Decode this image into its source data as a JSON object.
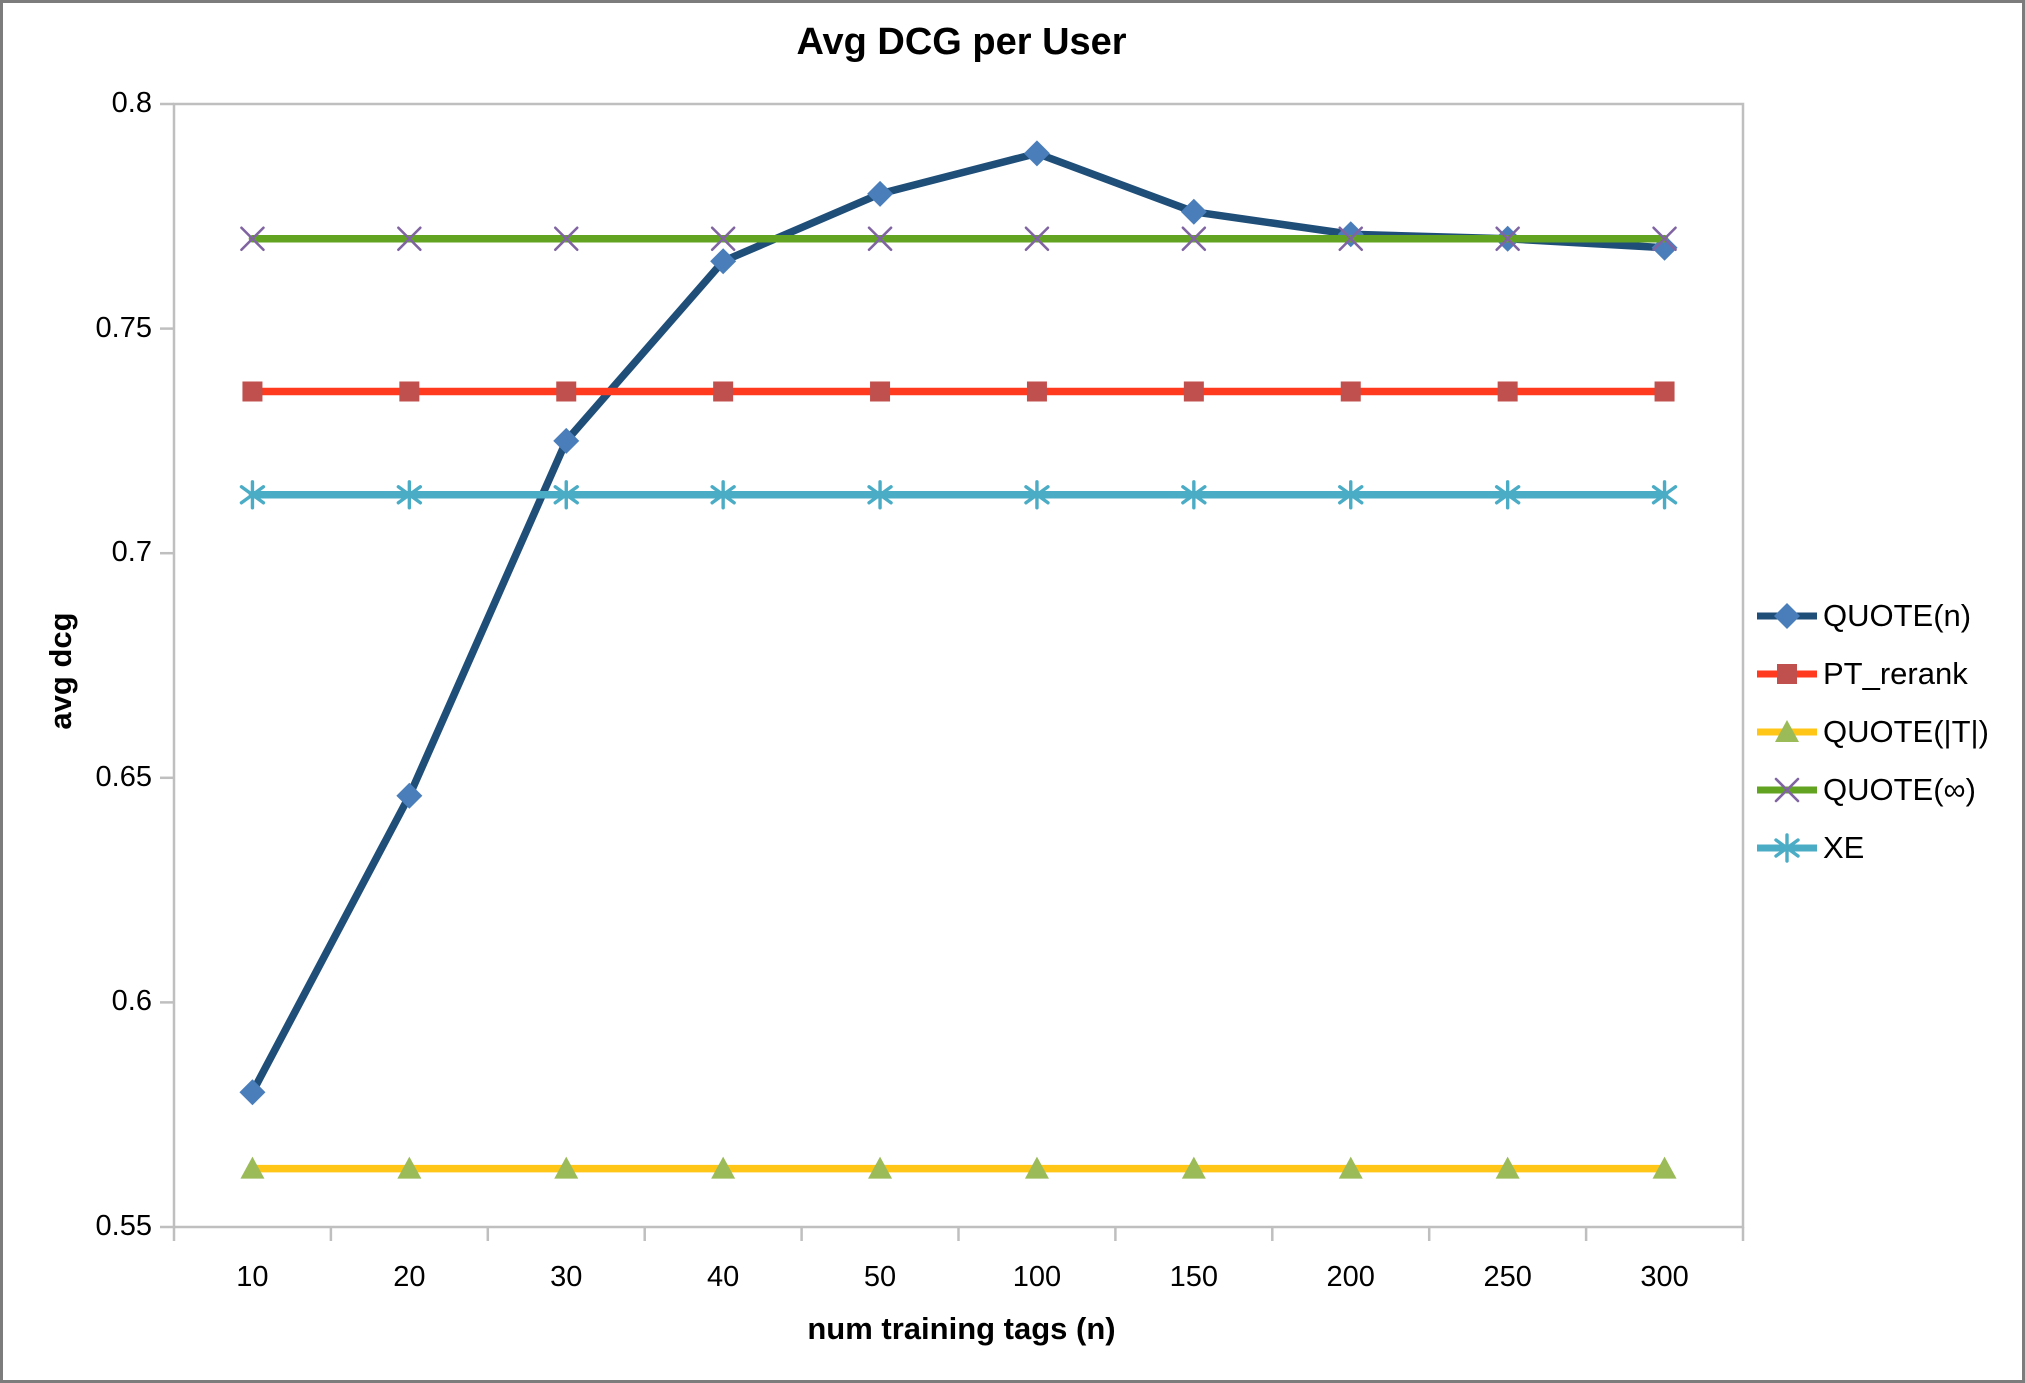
{
  "window": {
    "background": "#ffffff",
    "border_color": "#7c7c7c",
    "axis_color": "#bfbfbf",
    "text_color": "#000000"
  },
  "chart_data": {
    "type": "line",
    "title": "Avg DCG per User",
    "xlabel": "num training tags (n)",
    "ylabel": "avg dcg",
    "categories": [
      "10",
      "20",
      "30",
      "40",
      "50",
      "100",
      "150",
      "200",
      "250",
      "300"
    ],
    "y_ticks": [
      "0.8",
      "0.75",
      "0.7",
      "0.65",
      "0.6",
      "0.55"
    ],
    "ylim": [
      0.55,
      0.8
    ],
    "grid": false,
    "legend_position": "right-outside",
    "series": [
      {
        "name": "QUOTE(n)",
        "marker": "diamond",
        "line_color": "#1f4e79",
        "marker_color": "#4a7ebb",
        "values": [
          0.58,
          0.646,
          0.725,
          0.765,
          0.78,
          0.789,
          0.776,
          0.771,
          0.77,
          0.768
        ]
      },
      {
        "name": "PT_rerank",
        "marker": "square",
        "line_color": "#ff3a1f",
        "marker_color": "#c0504d",
        "values": [
          0.736,
          0.736,
          0.736,
          0.736,
          0.736,
          0.736,
          0.736,
          0.736,
          0.736,
          0.736
        ]
      },
      {
        "name": "QUOTE(|T|)",
        "marker": "triangle",
        "line_color": "#ffc517",
        "marker_color": "#9bbb59",
        "values": [
          0.563,
          0.563,
          0.563,
          0.563,
          0.563,
          0.563,
          0.563,
          0.563,
          0.563,
          0.563
        ]
      },
      {
        "name": "QUOTE(∞)",
        "marker": "x",
        "line_color": "#63a322",
        "marker_color": "#8064a2",
        "values": [
          0.77,
          0.77,
          0.77,
          0.77,
          0.77,
          0.77,
          0.77,
          0.77,
          0.77,
          0.77
        ]
      },
      {
        "name": "XE",
        "marker": "asterisk",
        "line_color": "#4bacc6",
        "marker_color": "#4bacc6",
        "values": [
          0.713,
          0.713,
          0.713,
          0.713,
          0.713,
          0.713,
          0.713,
          0.713,
          0.713,
          0.713
        ]
      }
    ]
  }
}
